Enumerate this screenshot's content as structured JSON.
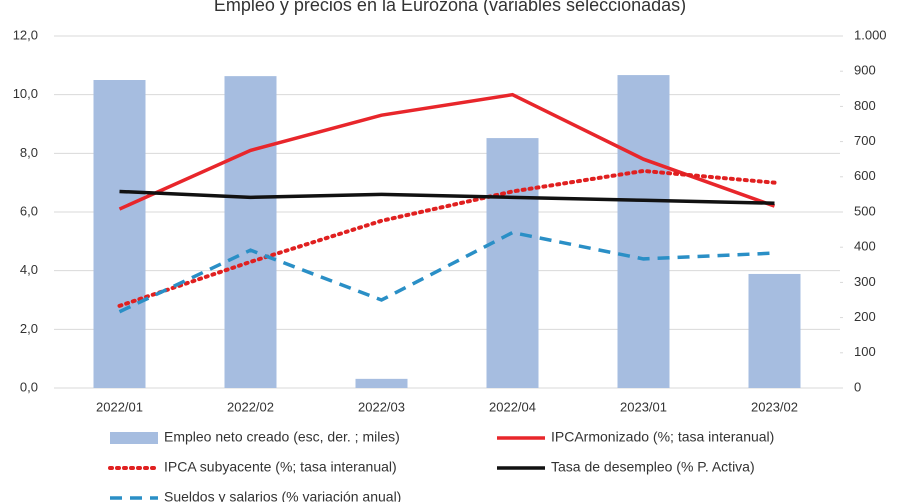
{
  "chart_data": {
    "type": "combo",
    "title": "Empleo y precios en la Eurozona (variables seleccionadas)",
    "categories": [
      "2022/01",
      "2022/02",
      "2022/03",
      "2022/04",
      "2023/01",
      "2023/02"
    ],
    "series": [
      {
        "name": "Empleo neto creado (esc, der. ; miles)",
        "type": "bar",
        "axis": "y2",
        "color": "#a6bde0",
        "values": [
          875,
          886,
          26,
          710,
          889,
          324
        ]
      },
      {
        "name": "IPCArmonizado (%; tasa interanual)",
        "type": "line",
        "dash": "solid",
        "color": "#e8262b",
        "values": [
          6.1,
          8.1,
          9.3,
          10.0,
          7.8,
          6.2
        ]
      },
      {
        "name": "IPCA subyacente (%; tasa interanual)",
        "type": "line",
        "dash": "dotted",
        "color": "#e02020",
        "values": [
          2.8,
          4.3,
          5.7,
          6.7,
          7.4,
          7.0
        ]
      },
      {
        "name": "Tasa de desempleo (% P. Activa)",
        "type": "line",
        "dash": "solid",
        "color": "#111111",
        "values": [
          6.7,
          6.5,
          6.6,
          6.5,
          6.4,
          6.3
        ]
      },
      {
        "name": "Sueldos y salarios (% variación anual)",
        "type": "line",
        "dash": "dashed",
        "color": "#2a8fc6",
        "values": [
          2.6,
          4.7,
          3.0,
          5.3,
          4.4,
          4.6
        ]
      }
    ],
    "ylim": [
      0,
      12
    ],
    "yticks": [
      {
        "value": 0,
        "label": "0,0"
      },
      {
        "value": 2,
        "label": "2,0"
      },
      {
        "value": 4,
        "label": "4,0"
      },
      {
        "value": 6,
        "label": "6,0"
      },
      {
        "value": 8,
        "label": "8,0"
      },
      {
        "value": 10,
        "label": "10,0"
      },
      {
        "value": 12,
        "label": "12,0"
      }
    ],
    "y2lim": [
      0,
      1000
    ],
    "y2ticks": [
      0,
      100,
      200,
      300,
      400,
      500,
      600,
      700,
      800,
      900,
      {
        "value": 1000,
        "label": "1.000"
      }
    ],
    "grid": true
  }
}
